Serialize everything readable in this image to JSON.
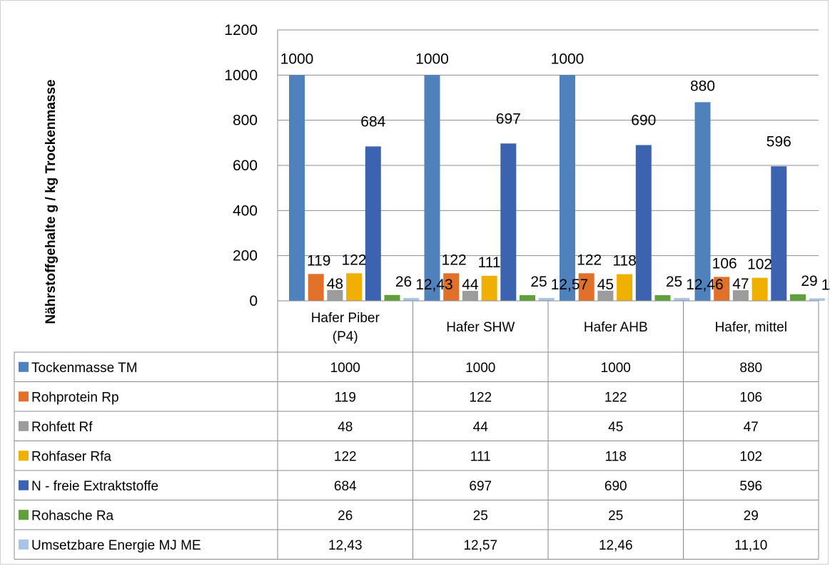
{
  "chart_data": {
    "type": "bar",
    "ylabel": "Nährstoffgehalte g / kg Trockenmasse",
    "xlabel": "",
    "ylim": [
      0,
      1200
    ],
    "yticks": [
      0,
      200,
      400,
      600,
      800,
      1000,
      1200
    ],
    "grid": true,
    "legend": "data-table-below",
    "categories": [
      "Hafer Piber (P4)",
      "Hafer SHW",
      "Hafer AHB",
      "Hafer, mittel"
    ],
    "series": [
      {
        "name": "Tockenmasse TM",
        "color": "#4f81bd",
        "values": [
          1000,
          1000,
          1000,
          880
        ],
        "labels": [
          "1000",
          "1000",
          "1000",
          "880"
        ]
      },
      {
        "name": "Rohprotein Rp",
        "color": "#e0702a",
        "values": [
          119,
          122,
          122,
          106
        ],
        "labels": [
          "119",
          "122",
          "122",
          "106"
        ]
      },
      {
        "name": "Rohfett Rf",
        "color": "#9c9c9c",
        "values": [
          48,
          44,
          45,
          47
        ],
        "labels": [
          "48",
          "44",
          "45",
          "47"
        ]
      },
      {
        "name": "Rohfaser Rfa",
        "color": "#f0b000",
        "values": [
          122,
          111,
          118,
          102
        ],
        "labels": [
          "122",
          "111",
          "118",
          "102"
        ]
      },
      {
        "name": "N - freie Extraktstoffe",
        "color": "#3b63b0",
        "values": [
          684,
          697,
          690,
          596
        ],
        "labels": [
          "684",
          "697",
          "690",
          "596"
        ]
      },
      {
        "name": "Rohasche Ra",
        "color": "#5fa03a",
        "values": [
          26,
          25,
          25,
          29
        ],
        "labels": [
          "26",
          "25",
          "25",
          "29"
        ]
      },
      {
        "name": "Umsetzbare Energie MJ ME",
        "color": "#a9c4e6",
        "values": [
          12.43,
          12.57,
          12.46,
          11.1
        ],
        "labels": [
          "12,43",
          "12,57",
          "12,46",
          "11,10"
        ]
      }
    ]
  }
}
